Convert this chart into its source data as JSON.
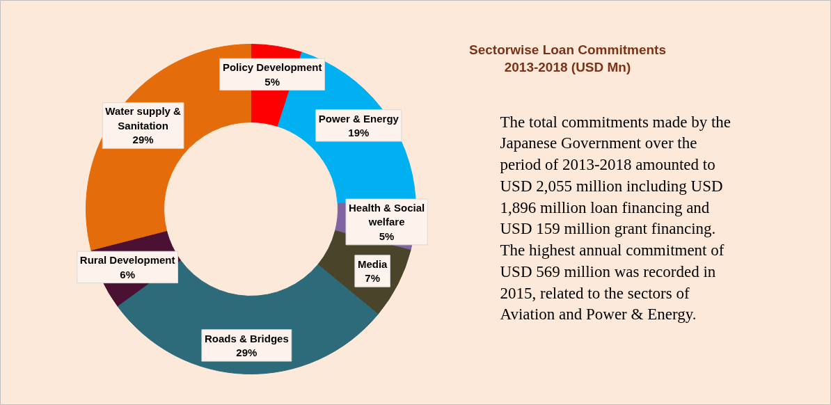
{
  "chart_data": {
    "type": "donut",
    "title": "Sectorwise Loan Commitments 2013-2018 (USD Mn)",
    "categories": [
      "Policy Development",
      "Power & Energy",
      "Health & Social welfare",
      "Media",
      "Roads & Bridges",
      "Rural Development",
      "Water supply & Sanitation"
    ],
    "values": [
      5,
      19,
      5,
      7,
      29,
      6,
      29
    ],
    "colors": [
      "#ff0000",
      "#00b0f0",
      "#8064a2",
      "#4a452a",
      "#2e6b7a",
      "#4a1133",
      "#e46c0a"
    ],
    "data_labels": true,
    "value_labels": [
      "5%",
      "19%",
      "5%",
      "7%",
      "29%",
      "6%",
      "29%"
    ],
    "legend": false,
    "annotations": [
      "The total commitments made by the Japanese Government over the period of 2013-2018 amounted to USD 2,055 million including USD 1,896 million loan financing and USD 159 million grant financing. The highest annual commitment of USD 569 million was recorded in 2015, related to the sectors of Aviation and Power & Energy."
    ]
  }
}
